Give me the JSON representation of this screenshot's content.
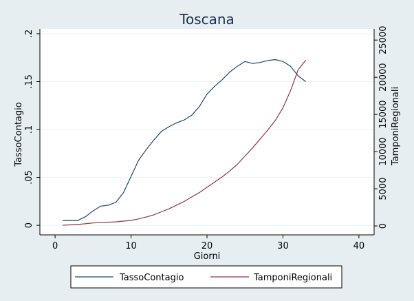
{
  "chart_data": {
    "type": "line",
    "title": "Toscana",
    "xlabel": "Giorni",
    "ylabel_left": "TassoContagio",
    "ylabel_right": "TamponiRegionali",
    "xlim": [
      -2,
      42
    ],
    "ylim_left": [
      -0.01,
      0.205
    ],
    "ylim_right": [
      -1200,
      26500
    ],
    "xticks": [
      0,
      10,
      20,
      30,
      40
    ],
    "yticks_left": [
      0,
      0.05,
      0.1,
      0.15,
      0.2
    ],
    "ytick_labels_left": [
      "0",
      ".05",
      ".1",
      ".15",
      ".2"
    ],
    "yticks_right": [
      0,
      5000,
      10000,
      15000,
      20000,
      25000
    ],
    "grid": "horizontal",
    "legend_position": "bottom",
    "colors": {
      "TassoContagio": "#1a476f",
      "TamponiRegionali": "#90353b"
    },
    "series": [
      {
        "name": "TassoContagio",
        "axis": "left",
        "x": [
          1,
          2,
          3,
          4,
          5,
          6,
          7,
          8,
          9,
          10,
          11,
          12,
          13,
          14,
          15,
          16,
          17,
          18,
          19,
          20,
          21,
          22,
          23,
          24,
          25,
          26,
          27,
          28,
          29,
          30,
          31,
          32,
          33
        ],
        "values": [
          0.005,
          0.005,
          0.005,
          0.009,
          0.015,
          0.02,
          0.021,
          0.024,
          0.034,
          0.051,
          0.068,
          0.079,
          0.089,
          0.098,
          0.103,
          0.107,
          0.11,
          0.115,
          0.124,
          0.137,
          0.145,
          0.152,
          0.16,
          0.166,
          0.171,
          0.169,
          0.17,
          0.172,
          0.173,
          0.171,
          0.166,
          0.156,
          0.15
        ]
      },
      {
        "name": "TamponiRegionali",
        "axis": "right",
        "x": [
          1,
          2,
          3,
          4,
          5,
          6,
          7,
          8,
          9,
          10,
          11,
          12,
          13,
          14,
          15,
          16,
          17,
          18,
          19,
          20,
          21,
          22,
          23,
          24,
          25,
          26,
          27,
          28,
          29,
          30,
          31,
          32,
          33
        ],
        "values": [
          100,
          150,
          200,
          300,
          400,
          450,
          500,
          550,
          650,
          750,
          950,
          1200,
          1500,
          1900,
          2300,
          2800,
          3300,
          3900,
          4500,
          5200,
          5900,
          6600,
          7400,
          8300,
          9400,
          10500,
          11700,
          12900,
          14200,
          15900,
          18200,
          21000,
          22300
        ]
      }
    ]
  }
}
